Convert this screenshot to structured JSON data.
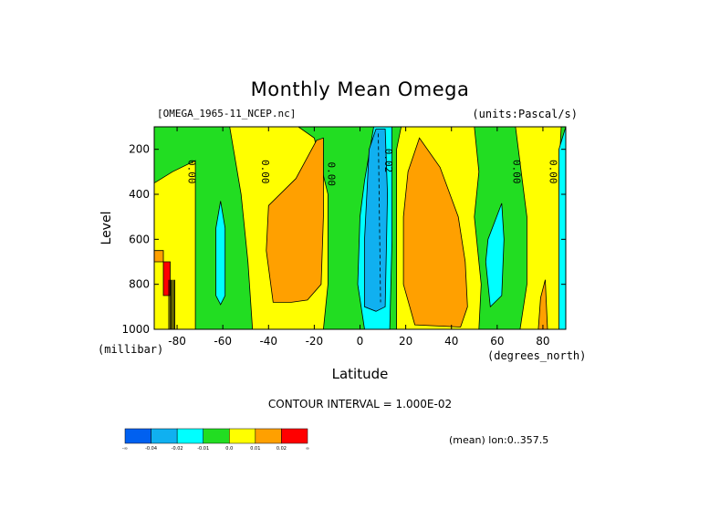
{
  "figure": {
    "title": "Monthly Mean Omega",
    "file_label": "[OMEGA_1965-11_NCEP.nc]",
    "units_label": "(units:Pascal/s)",
    "contour_interval": "CONTOUR INTERVAL = 1.000E-02",
    "mean_label": "(mean) lon:0..357.5",
    "y_units": "(millibar)",
    "x_units": "(degrees_north)"
  },
  "chart_data": {
    "type": "heatmap",
    "title": "Monthly Mean Omega",
    "xlabel": "Latitude",
    "ylabel": "Level",
    "xlim": [
      -90,
      90
    ],
    "ylim": [
      1000,
      100
    ],
    "x_ticks": [
      -80,
      -60,
      -40,
      -20,
      0,
      20,
      40,
      60,
      80
    ],
    "y_ticks": [
      200,
      400,
      600,
      800,
      1000
    ],
    "contour_labels": [
      {
        "text": "0.00",
        "lat": -75,
        "level": 300
      },
      {
        "text": "0.00",
        "lat": -43,
        "level": 300
      },
      {
        "text": "0.00",
        "lat": -14,
        "level": 310
      },
      {
        "text": "0.02",
        "lat": 11,
        "level": 250
      },
      {
        "text": "0.00",
        "lat": 67,
        "level": 300
      },
      {
        "text": "0.00",
        "lat": 83,
        "level": 300
      }
    ],
    "colorbar": {
      "colors": [
        "#0060f0",
        "#10b0f0",
        "#00ffff",
        "#22dd22",
        "#ffff00",
        "#ffa000",
        "#ff0000"
      ],
      "labels": [
        "-∞",
        "-0.04",
        "-0.02",
        "-0.01",
        "0.0",
        "0.01",
        "0.02",
        "∞"
      ]
    },
    "regions": [
      {
        "name": "base",
        "color": "#22dd22"
      },
      {
        "name": "yellow-south-polar",
        "color": "#ffff00",
        "lon_lat": [
          [
            -90,
            350
          ],
          [
            -82,
            300
          ],
          [
            -72,
            250
          ],
          [
            -72,
            1000
          ],
          [
            -90,
            1000
          ]
        ]
      },
      {
        "name": "yellow-south-mid",
        "color": "#ffff00",
        "lon_lat": [
          [
            -57,
            100
          ],
          [
            -27,
            100
          ],
          [
            -20,
            150
          ],
          [
            -14,
            400
          ],
          [
            -14,
            800
          ],
          [
            -16,
            1000
          ],
          [
            -47,
            1000
          ],
          [
            -49,
            700
          ],
          [
            -52,
            400
          ],
          [
            -55,
            220
          ]
        ]
      },
      {
        "name": "orange-south-mid",
        "color": "#ffa000",
        "lon_lat": [
          [
            -40,
            450
          ],
          [
            -28,
            330
          ],
          [
            -19,
            160
          ],
          [
            -16,
            150
          ],
          [
            -16,
            500
          ],
          [
            -17,
            800
          ],
          [
            -23,
            870
          ],
          [
            -30,
            880
          ],
          [
            -38,
            880
          ],
          [
            -41,
            650
          ]
        ]
      },
      {
        "name": "cyan-south",
        "color": "#00ffff",
        "lon_lat": [
          [
            -63,
            550
          ],
          [
            -61,
            430
          ],
          [
            -59,
            550
          ],
          [
            -59,
            850
          ],
          [
            -61,
            890
          ],
          [
            -63,
            850
          ]
        ]
      },
      {
        "name": "cyan-equator",
        "color": "#00ffff",
        "lon_lat": [
          [
            2,
            340
          ],
          [
            6,
            100
          ],
          [
            14,
            100
          ],
          [
            14,
            600
          ],
          [
            13,
            1000
          ],
          [
            2,
            1000
          ],
          [
            -1,
            800
          ],
          [
            0,
            500
          ]
        ]
      },
      {
        "name": "blue-equator",
        "color": "#10b0f0",
        "lon_lat": [
          [
            4,
            200
          ],
          [
            7,
            110
          ],
          [
            11,
            110
          ],
          [
            12,
            400
          ],
          [
            11,
            900
          ],
          [
            7,
            920
          ],
          [
            2,
            900
          ],
          [
            2,
            600
          ]
        ]
      },
      {
        "name": "yellow-tropical-north",
        "color": "#ffff00",
        "lon_lat": [
          [
            16,
            200
          ],
          [
            18,
            100
          ],
          [
            50,
            100
          ],
          [
            52,
            300
          ],
          [
            50,
            500
          ],
          [
            53,
            800
          ],
          [
            52,
            1000
          ],
          [
            16,
            1000
          ]
        ]
      },
      {
        "name": "orange-tropical-north",
        "color": "#ffa000",
        "lon_lat": [
          [
            21,
            300
          ],
          [
            26,
            150
          ],
          [
            35,
            280
          ],
          [
            43,
            500
          ],
          [
            46,
            700
          ],
          [
            47,
            900
          ],
          [
            44,
            990
          ],
          [
            24,
            980
          ],
          [
            19,
            800
          ],
          [
            19,
            500
          ]
        ]
      },
      {
        "name": "cyan-north",
        "color": "#00ffff",
        "lon_lat": [
          [
            56,
            600
          ],
          [
            62,
            440
          ],
          [
            63,
            600
          ],
          [
            62,
            850
          ],
          [
            57,
            900
          ],
          [
            55,
            700
          ]
        ]
      },
      {
        "name": "yellow-north-polar",
        "color": "#ffff00",
        "lon_lat": [
          [
            68,
            100
          ],
          [
            88,
            100
          ],
          [
            87,
            300
          ],
          [
            88,
            1000
          ],
          [
            70,
            1000
          ],
          [
            73,
            800
          ],
          [
            73,
            500
          ]
        ]
      },
      {
        "name": "orange-north-polar",
        "color": "#ffa000",
        "lon_lat": [
          [
            79,
            860
          ],
          [
            81,
            780
          ],
          [
            82,
            1000
          ],
          [
            78,
            1000
          ]
        ]
      },
      {
        "name": "cyan-north-edge",
        "color": "#00ffff",
        "lon_lat": [
          [
            87,
            200
          ],
          [
            90,
            100
          ],
          [
            90,
            1000
          ],
          [
            87,
            1000
          ]
        ]
      },
      {
        "name": "orange-south-edge",
        "color": "#ffa000",
        "lon_lat": [
          [
            -90,
            650
          ],
          [
            -86,
            650
          ],
          [
            -86,
            700
          ],
          [
            -90,
            700
          ]
        ]
      },
      {
        "name": "red-south-edge",
        "color": "#ff0000",
        "lon_lat": [
          [
            -86,
            700
          ],
          [
            -83,
            700
          ],
          [
            -83,
            850
          ],
          [
            -86,
            850
          ]
        ]
      }
    ]
  }
}
